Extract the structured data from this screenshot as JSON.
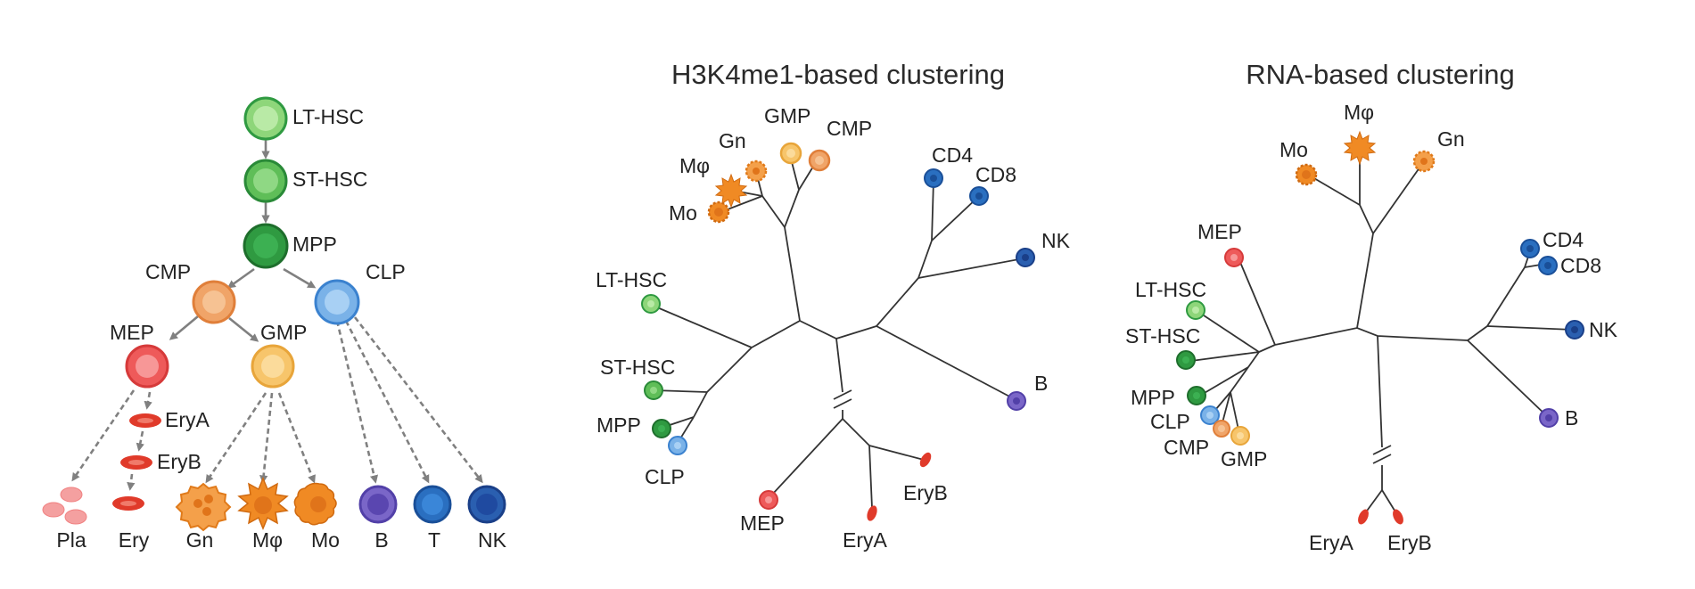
{
  "colors": {
    "hsc_light": "#8ed67a",
    "hsc_dark": "#2f9a41",
    "cmp": "#f0a468",
    "clp": "#7ab2e8",
    "mep": "#ee5a5a",
    "gmp": "#f7c56b",
    "myeloid": "#f08a24",
    "b_cell": "#6a55b8",
    "t_nk": "#2a6fc0",
    "erythroid": "#e03a2a",
    "platelet": "#f4a0a0"
  },
  "hierarchy_panel": {
    "labels": {
      "lt_hsc": "LT-HSC",
      "st_hsc": "ST-HSC",
      "mpp": "MPP",
      "cmp": "CMP",
      "clp": "CLP",
      "mep": "MEP",
      "gmp": "GMP",
      "eryA": "EryA",
      "eryB": "EryB"
    },
    "bottom_labels": [
      "Pla",
      "Ery",
      "Gn",
      "Mφ",
      "Mo",
      "B",
      "T",
      "NK"
    ]
  },
  "h3k4me1_panel": {
    "title": "H3K4me1-based clustering",
    "labels": {
      "gmp": "GMP",
      "cmp": "CMP",
      "gn": "Gn",
      "mphi": "Mφ",
      "mo": "Mo",
      "cd4": "CD4",
      "cd8": "CD8",
      "nk": "NK",
      "lt_hsc": "LT-HSC",
      "st_hsc": "ST-HSC",
      "mpp": "MPP",
      "clp": "CLP",
      "b": "B",
      "eryB": "EryB",
      "mep": "MEP",
      "eryA": "EryA"
    }
  },
  "rna_panel": {
    "title": "RNA-based clustering",
    "labels": {
      "mphi": "Mφ",
      "mo": "Mo",
      "gn": "Gn",
      "mep": "MEP",
      "cd4": "CD4",
      "cd8": "CD8",
      "lt_hsc": "LT-HSC",
      "st_hsc": "ST-HSC",
      "nk": "NK",
      "mpp": "MPP",
      "clp": "CLP",
      "cmp": "CMP",
      "gmp": "GMP",
      "b": "B",
      "eryA": "EryA",
      "eryB": "EryB"
    }
  }
}
